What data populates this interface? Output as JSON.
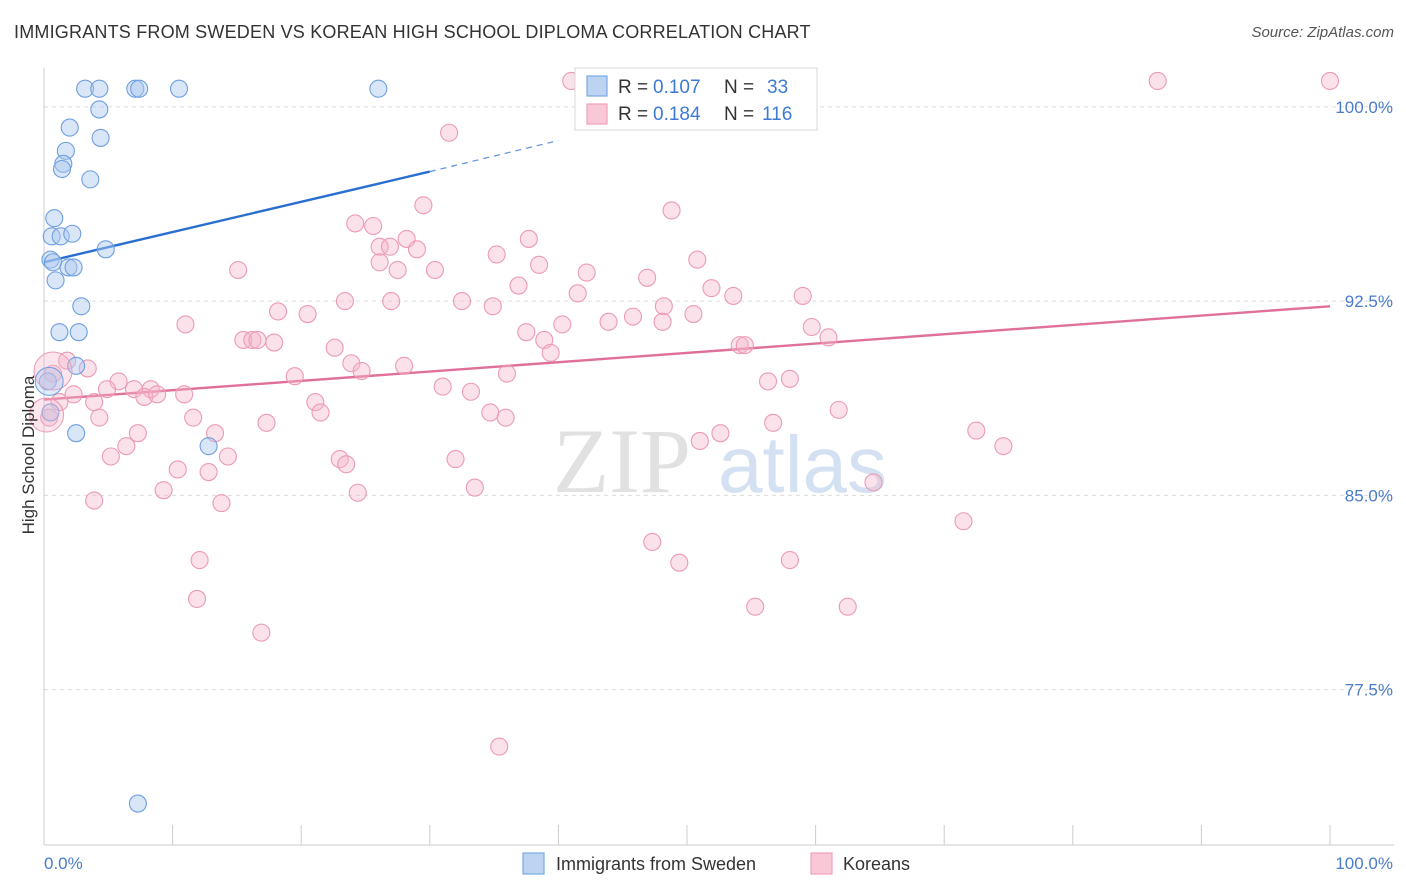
{
  "header": {
    "title": "IMMIGRANTS FROM SWEDEN VS KOREAN HIGH SCHOOL DIPLOMA CORRELATION CHART",
    "source": "Source: ZipAtlas.com"
  },
  "watermark": {
    "zip": "ZIP",
    "atlas": "atlas"
  },
  "legend": {
    "r_label": "R =",
    "n_label": "N =",
    "rows": [
      {
        "series": "Immigrants from Sweden",
        "r": "0.107",
        "n": "33"
      },
      {
        "series": "Koreans",
        "r": "0.184",
        "n": "116"
      }
    ]
  },
  "chart_data": {
    "type": "scatter",
    "title": "IMMIGRANTS FROM SWEDEN VS KOREAN HIGH SCHOOL DIPLOMA CORRELATION CHART",
    "xlabel": "",
    "ylabel": "High School Diploma",
    "xlim": [
      0,
      100
    ],
    "ylim": [
      71.5,
      101.5
    ],
    "x_tick_labels": [
      "0.0%",
      "100.0%"
    ],
    "y_tick_labels": [
      "100.0%",
      "92.5%",
      "85.0%",
      "77.5%"
    ],
    "y_ticks": [
      100.0,
      92.5,
      85.0,
      77.5
    ],
    "grid": true,
    "legend_position": "top-center",
    "colors": {
      "sweden": "#7aaae6",
      "koreans": "#f0a0bb",
      "sweden_line": "#2a6fd0",
      "koreans_line": "#e0709a"
    },
    "series": [
      {
        "name": "Immigrants from Sweden",
        "trend": {
          "x": [
            0,
            30,
            40
          ],
          "y": [
            94.0,
            97.5,
            98.7
          ],
          "solid_until": 30
        },
        "points": [
          [
            3.2,
            100.7
          ],
          [
            4.3,
            100.7
          ],
          [
            7.1,
            100.7
          ],
          [
            7.4,
            100.7
          ],
          [
            10.5,
            100.7
          ],
          [
            26.0,
            100.7
          ],
          [
            4.3,
            99.9
          ],
          [
            2.0,
            99.2
          ],
          [
            4.4,
            98.8
          ],
          [
            1.7,
            98.3
          ],
          [
            1.5,
            97.8
          ],
          [
            1.4,
            97.6
          ],
          [
            3.6,
            97.2
          ],
          [
            0.8,
            95.7
          ],
          [
            0.6,
            95.0
          ],
          [
            1.3,
            95.0
          ],
          [
            2.2,
            95.1
          ],
          [
            4.8,
            94.5
          ],
          [
            0.5,
            94.1
          ],
          [
            0.7,
            94.0
          ],
          [
            1.9,
            93.8
          ],
          [
            2.3,
            93.8
          ],
          [
            0.9,
            93.3
          ],
          [
            2.9,
            92.3
          ],
          [
            1.2,
            91.3
          ],
          [
            2.7,
            91.3
          ],
          [
            2.5,
            90.0
          ],
          [
            0.3,
            89.4
          ],
          [
            0.5,
            88.2
          ],
          [
            2.5,
            87.4
          ],
          [
            12.8,
            86.9
          ],
          [
            7.3,
            73.1
          ]
        ]
      },
      {
        "name": "Koreans",
        "trend": {
          "x": [
            0,
            100
          ],
          "y": [
            88.7,
            92.3
          ]
        },
        "points": [
          [
            41.0,
            101.0
          ],
          [
            86.6,
            101.0
          ],
          [
            100.0,
            101.0
          ],
          [
            31.5,
            99.0
          ],
          [
            48.8,
            96.0
          ],
          [
            29.5,
            96.2
          ],
          [
            24.2,
            95.5
          ],
          [
            25.6,
            95.4
          ],
          [
            28.2,
            94.9
          ],
          [
            26.1,
            94.6
          ],
          [
            26.9,
            94.6
          ],
          [
            29.0,
            94.5
          ],
          [
            37.7,
            94.9
          ],
          [
            35.2,
            94.3
          ],
          [
            50.8,
            94.1
          ],
          [
            26.1,
            94.0
          ],
          [
            38.5,
            93.9
          ],
          [
            15.1,
            93.7
          ],
          [
            27.5,
            93.7
          ],
          [
            30.4,
            93.7
          ],
          [
            42.2,
            93.6
          ],
          [
            46.9,
            93.4
          ],
          [
            36.9,
            93.1
          ],
          [
            51.9,
            93.0
          ],
          [
            41.5,
            92.8
          ],
          [
            53.6,
            92.7
          ],
          [
            59.0,
            92.7
          ],
          [
            23.4,
            92.5
          ],
          [
            27.0,
            92.5
          ],
          [
            32.5,
            92.5
          ],
          [
            34.9,
            92.3
          ],
          [
            48.2,
            92.3
          ],
          [
            50.5,
            92.0
          ],
          [
            18.2,
            92.1
          ],
          [
            20.5,
            92.0
          ],
          [
            45.8,
            91.9
          ],
          [
            43.9,
            91.7
          ],
          [
            48.1,
            91.7
          ],
          [
            11.0,
            91.6
          ],
          [
            40.3,
            91.6
          ],
          [
            59.7,
            91.5
          ],
          [
            37.5,
            91.3
          ],
          [
            61.0,
            91.1
          ],
          [
            15.5,
            91.0
          ],
          [
            16.2,
            91.0
          ],
          [
            16.6,
            91.0
          ],
          [
            38.9,
            91.0
          ],
          [
            17.9,
            90.9
          ],
          [
            22.6,
            90.7
          ],
          [
            54.1,
            90.8
          ],
          [
            54.5,
            90.8
          ],
          [
            39.4,
            90.5
          ],
          [
            1.8,
            90.2
          ],
          [
            23.9,
            90.1
          ],
          [
            28.0,
            90.0
          ],
          [
            3.4,
            89.9
          ],
          [
            0.7,
            89.7
          ],
          [
            24.7,
            89.8
          ],
          [
            19.5,
            89.6
          ],
          [
            36.0,
            89.7
          ],
          [
            58.0,
            89.5
          ],
          [
            5.8,
            89.4
          ],
          [
            56.3,
            89.4
          ],
          [
            31.0,
            89.2
          ],
          [
            4.9,
            89.1
          ],
          [
            7.0,
            89.1
          ],
          [
            8.3,
            89.1
          ],
          [
            2.3,
            88.9
          ],
          [
            7.8,
            88.8
          ],
          [
            8.8,
            88.9
          ],
          [
            10.9,
            88.9
          ],
          [
            33.2,
            89.0
          ],
          [
            1.2,
            88.6
          ],
          [
            3.9,
            88.6
          ],
          [
            21.1,
            88.6
          ],
          [
            21.5,
            88.2
          ],
          [
            34.7,
            88.2
          ],
          [
            35.9,
            88.0
          ],
          [
            61.8,
            88.3
          ],
          [
            0.4,
            88.0
          ],
          [
            4.3,
            88.0
          ],
          [
            11.6,
            88.0
          ],
          [
            17.3,
            87.8
          ],
          [
            56.7,
            87.8
          ],
          [
            72.5,
            87.5
          ],
          [
            13.3,
            87.4
          ],
          [
            7.3,
            87.4
          ],
          [
            52.6,
            87.4
          ],
          [
            51.0,
            87.1
          ],
          [
            6.4,
            86.9
          ],
          [
            74.6,
            86.9
          ],
          [
            5.2,
            86.5
          ],
          [
            14.3,
            86.5
          ],
          [
            23.0,
            86.4
          ],
          [
            23.5,
            86.2
          ],
          [
            32.0,
            86.4
          ],
          [
            10.4,
            86.0
          ],
          [
            12.8,
            85.9
          ],
          [
            64.5,
            85.5
          ],
          [
            9.3,
            85.2
          ],
          [
            33.5,
            85.3
          ],
          [
            24.4,
            85.1
          ],
          [
            3.9,
            84.8
          ],
          [
            13.8,
            84.7
          ],
          [
            71.5,
            84.0
          ],
          [
            47.3,
            83.2
          ],
          [
            49.4,
            82.4
          ],
          [
            58.0,
            82.5
          ],
          [
            12.1,
            82.5
          ],
          [
            11.9,
            81.0
          ],
          [
            55.3,
            80.7
          ],
          [
            62.5,
            80.7
          ],
          [
            16.9,
            79.7
          ],
          [
            35.4,
            75.3
          ]
        ]
      }
    ]
  },
  "bottom_legend": [
    {
      "label": "Immigrants from Sweden"
    },
    {
      "label": "Koreans"
    }
  ]
}
